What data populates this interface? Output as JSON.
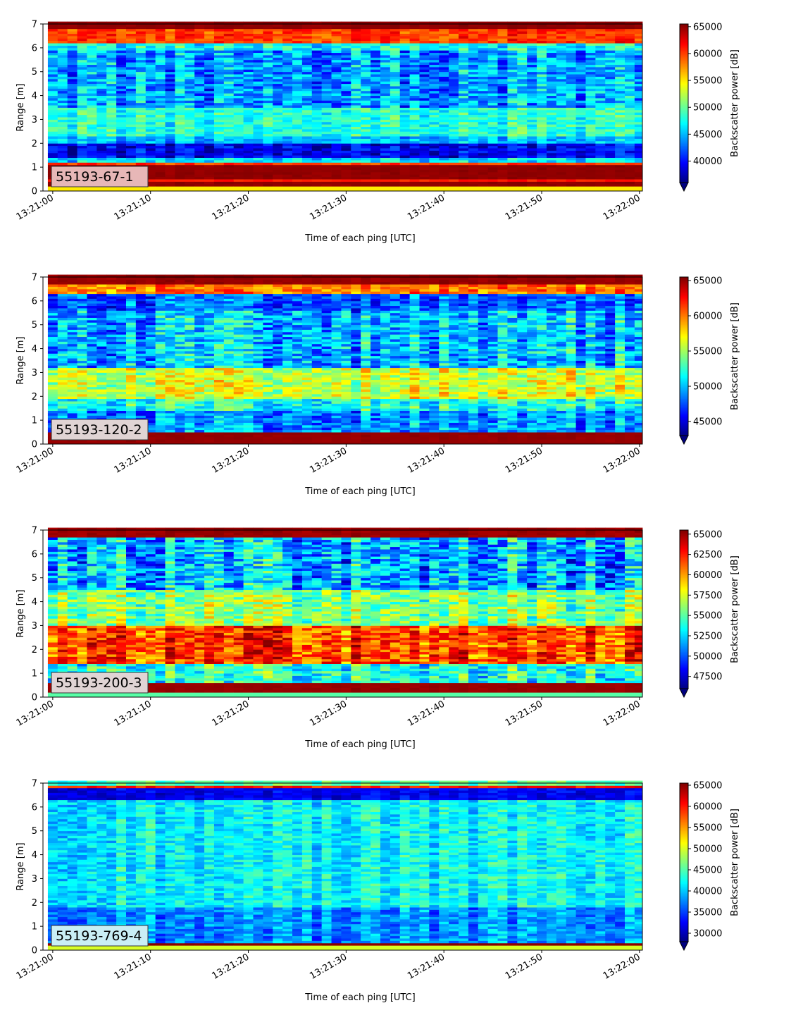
{
  "colormap": "jet",
  "chart_data": [
    {
      "type": "heatmap",
      "label": "55193-67-1",
      "label_box_color": "#e7b7b7",
      "xlabel": "Time of each ping [UTC]",
      "ylabel": "Range [m]",
      "clabel": "Backscatter power [dB]",
      "xticks": [
        "13:21:00",
        "13:21:10",
        "13:21:20",
        "13:21:30",
        "13:21:40",
        "13:21:50",
        "13:22:00"
      ],
      "xlim_seconds": [
        -1,
        60.3
      ],
      "ylim": [
        0,
        7
      ],
      "yticks": [
        0,
        1,
        2,
        3,
        4,
        5,
        6,
        7
      ],
      "clim": [
        36000,
        65500
      ],
      "cticks": [
        40000,
        45000,
        50000,
        55000,
        60000,
        65000
      ],
      "cextend": "min",
      "range_bands": [
        {
          "from": 0.0,
          "to": 0.25,
          "value": 55000,
          "jitter": 0
        },
        {
          "from": 0.25,
          "to": 0.45,
          "value": 65000,
          "jitter": 500
        },
        {
          "from": 0.45,
          "to": 0.55,
          "value": 61000,
          "jitter": 1000
        },
        {
          "from": 0.55,
          "to": 1.05,
          "value": 65000,
          "jitter": 500
        },
        {
          "from": 1.05,
          "to": 1.2,
          "value": 60000,
          "jitter": 2000
        },
        {
          "from": 1.2,
          "to": 1.45,
          "value": 46000,
          "jitter": 4000
        },
        {
          "from": 1.45,
          "to": 2.0,
          "value": 39000,
          "jitter": 4000
        },
        {
          "from": 2.0,
          "to": 2.3,
          "value": 45000,
          "jitter": 4000
        },
        {
          "from": 2.3,
          "to": 3.5,
          "value": 48000,
          "jitter": 4000
        },
        {
          "from": 3.5,
          "to": 5.9,
          "value": 44000,
          "jitter": 6000
        },
        {
          "from": 5.9,
          "to": 6.2,
          "value": 47000,
          "jitter": 5000
        },
        {
          "from": 6.2,
          "to": 6.75,
          "value": 60000,
          "jitter": 3000
        },
        {
          "from": 6.75,
          "to": 7.0,
          "value": 65000,
          "jitter": 500
        }
      ]
    },
    {
      "type": "heatmap",
      "label": "55193-120-2",
      "label_box_color": "#e0d4d4",
      "xlabel": "Time of each ping [UTC]",
      "ylabel": "Range [m]",
      "clabel": "Backscatter power [dB]",
      "xticks": [
        "13:21:00",
        "13:21:10",
        "13:21:20",
        "13:21:30",
        "13:21:40",
        "13:21:50",
        "13:22:00"
      ],
      "xlim_seconds": [
        -1,
        60.3
      ],
      "ylim": [
        0,
        7
      ],
      "yticks": [
        0,
        1,
        2,
        3,
        4,
        5,
        6,
        7
      ],
      "clim": [
        43000,
        65500
      ],
      "cticks": [
        45000,
        50000,
        55000,
        60000,
        65000
      ],
      "cextend": "min",
      "range_bands": [
        {
          "from": 0.0,
          "to": 0.12,
          "value": 65000,
          "jitter": 0
        },
        {
          "from": 0.12,
          "to": 0.5,
          "value": 65000,
          "jitter": 300
        },
        {
          "from": 0.5,
          "to": 1.4,
          "value": 49000,
          "jitter": 4000
        },
        {
          "from": 1.4,
          "to": 1.9,
          "value": 52000,
          "jitter": 4000
        },
        {
          "from": 1.9,
          "to": 3.2,
          "value": 56000,
          "jitter": 4000
        },
        {
          "from": 3.2,
          "to": 5.6,
          "value": 50000,
          "jitter": 5000
        },
        {
          "from": 5.6,
          "to": 6.3,
          "value": 48000,
          "jitter": 4000
        },
        {
          "from": 6.3,
          "to": 6.7,
          "value": 60000,
          "jitter": 3000
        },
        {
          "from": 6.7,
          "to": 7.0,
          "value": 65000,
          "jitter": 500
        }
      ]
    },
    {
      "type": "heatmap",
      "label": "55193-200-3",
      "label_box_color": "#e0d4d4",
      "xlabel": "Time of each ping [UTC]",
      "ylabel": "Range [m]",
      "clabel": "Backscatter power [dB]",
      "xticks": [
        "13:21:00",
        "13:21:10",
        "13:21:20",
        "13:21:30",
        "13:21:40",
        "13:21:50",
        "13:22:00"
      ],
      "xlim_seconds": [
        -1,
        60.3
      ],
      "ylim": [
        0,
        7
      ],
      "yticks": [
        0,
        1,
        2,
        3,
        4,
        5,
        6,
        7
      ],
      "clim": [
        46000,
        65500
      ],
      "cticks": [
        47500,
        50000,
        52500,
        55000,
        57500,
        60000,
        62500,
        65000
      ],
      "cextend": "min",
      "range_bands": [
        {
          "from": 0.0,
          "to": 0.2,
          "value": 55000,
          "jitter": 0
        },
        {
          "from": 0.2,
          "to": 0.65,
          "value": 65000,
          "jitter": 300
        },
        {
          "from": 0.65,
          "to": 1.4,
          "value": 54000,
          "jitter": 4000
        },
        {
          "from": 1.4,
          "to": 3.0,
          "value": 62000,
          "jitter": 4000
        },
        {
          "from": 3.0,
          "to": 4.5,
          "value": 56000,
          "jitter": 4000
        },
        {
          "from": 4.5,
          "to": 6.7,
          "value": 52000,
          "jitter": 5000
        },
        {
          "from": 6.7,
          "to": 7.0,
          "value": 65000,
          "jitter": 500
        }
      ]
    },
    {
      "type": "heatmap",
      "label": "55193-769-4",
      "label_box_color": "#c9eef5",
      "xlabel": "Time of each ping [UTC]",
      "ylabel": "Range [m]",
      "clabel": "Backscatter power [dB]",
      "xticks": [
        "13:21:00",
        "13:21:10",
        "13:21:20",
        "13:21:30",
        "13:21:40",
        "13:21:50",
        "13:22:00"
      ],
      "xlim_seconds": [
        -1,
        60.3
      ],
      "ylim": [
        0,
        7
      ],
      "yticks": [
        0,
        1,
        2,
        3,
        4,
        5,
        6,
        7
      ],
      "clim": [
        28000,
        65500
      ],
      "cticks": [
        30000,
        35000,
        40000,
        45000,
        50000,
        55000,
        60000,
        65000
      ],
      "cextend": "min",
      "range_bands": [
        {
          "from": 0.0,
          "to": 0.2,
          "value": 50000,
          "jitter": 0
        },
        {
          "from": 0.2,
          "to": 0.35,
          "value": 65000,
          "jitter": 500
        },
        {
          "from": 0.35,
          "to": 1.8,
          "value": 38000,
          "jitter": 5000
        },
        {
          "from": 1.8,
          "to": 6.3,
          "value": 42000,
          "jitter": 5000
        },
        {
          "from": 6.3,
          "to": 6.75,
          "value": 32000,
          "jitter": 3000
        },
        {
          "from": 6.75,
          "to": 6.9,
          "value": 60000,
          "jitter": 4000
        },
        {
          "from": 6.9,
          "to": 7.0,
          "value": 45000,
          "jitter": 4000
        }
      ]
    }
  ]
}
